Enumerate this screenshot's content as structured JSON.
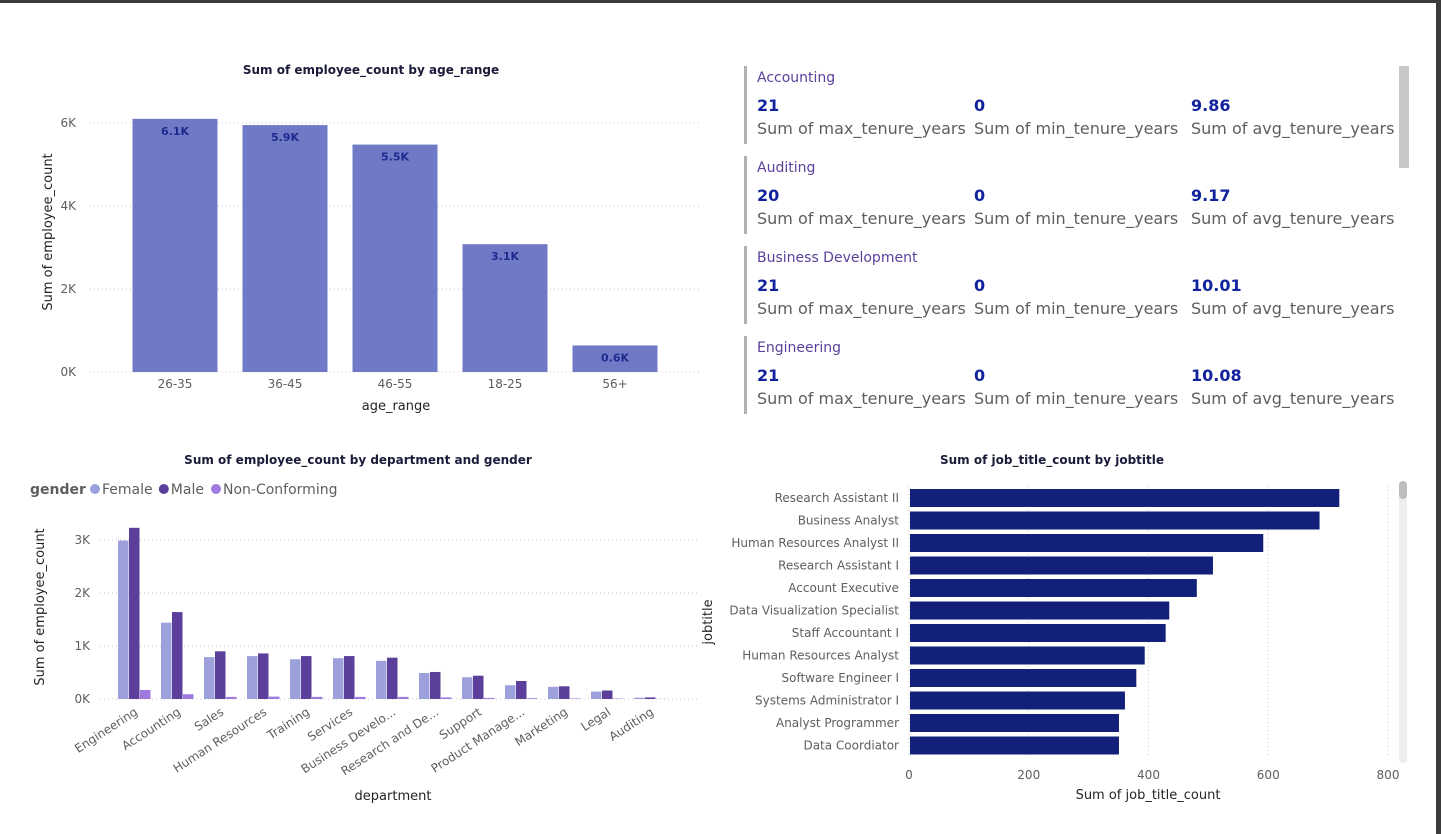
{
  "chart_data": [
    {
      "type": "bar",
      "title": "Sum of employee_count by age_range",
      "xlabel": "age_range",
      "ylabel": "Sum of employee_count",
      "categories": [
        "26-35",
        "36-45",
        "46-55",
        "18-25",
        "56+"
      ],
      "values": [
        6100,
        5950,
        5480,
        3080,
        640
      ],
      "data_labels": [
        "6.1K",
        "5.9K",
        "5.5K",
        "3.1K",
        "0.6K"
      ],
      "yticks": [
        "0K",
        "2K",
        "4K",
        "6K"
      ],
      "ylim": [
        0,
        6000
      ],
      "grid": true,
      "color": "#6f79c6"
    },
    {
      "type": "bar",
      "title": "Sum of employee_count by department and gender",
      "xlabel": "department",
      "ylabel": "Sum of employee_count",
      "legend_title": "gender",
      "legend_placement": "top-left",
      "categories": [
        "Engineering",
        "Accounting",
        "Sales",
        "Human Resources",
        "Training",
        "Services",
        "Business Develo...",
        "Research and De...",
        "Support",
        "Product Manage...",
        "Marketing",
        "Legal",
        "Auditing"
      ],
      "series": [
        {
          "name": "Female",
          "color": "#9ca1dc",
          "values": [
            2990,
            1440,
            790,
            810,
            750,
            770,
            720,
            490,
            410,
            260,
            230,
            140,
            25
          ]
        },
        {
          "name": "Male",
          "color": "#5b3f9a",
          "values": [
            3230,
            1640,
            900,
            860,
            810,
            810,
            780,
            510,
            440,
            340,
            240,
            160,
            30
          ]
        },
        {
          "name": "Non-Conforming",
          "color": "#9f79de",
          "values": [
            170,
            90,
            40,
            45,
            40,
            40,
            40,
            30,
            20,
            15,
            10,
            8,
            2
          ]
        }
      ],
      "yticks": [
        "0K",
        "1K",
        "2K",
        "3K"
      ],
      "ylim": [
        0,
        3300
      ],
      "grid": true
    },
    {
      "type": "bar",
      "orientation": "horizontal",
      "title": "Sum of job_title_count by jobtitle",
      "xlabel": "Sum of job_title_count",
      "ylabel": "jobtitle",
      "categories": [
        "Research Assistant II",
        "Business Analyst",
        "Human Resources Analyst II",
        "Research Assistant I",
        "Account Executive",
        "Data Visualization Specialist",
        "Staff Accountant I",
        "Human Resources Analyst",
        "Software Engineer I",
        "Systems Administrator I",
        "Analyst Programmer",
        "Data Coordiator"
      ],
      "values": [
        717,
        684,
        590,
        506,
        479,
        433,
        427,
        392,
        378,
        359,
        349,
        349
      ],
      "xticks": [
        "0",
        "200",
        "400",
        "600",
        "800"
      ],
      "xlim": [
        0,
        800
      ],
      "grid": true,
      "color": "#12207a"
    }
  ],
  "kpi": {
    "labels": {
      "max": "Sum of max_tenure_years",
      "min": "Sum of min_tenure_years",
      "avg": "Sum of avg_tenure_years"
    },
    "groups": [
      {
        "name": "Accounting",
        "max": "21",
        "min": "0",
        "avg": "9.86"
      },
      {
        "name": "Auditing",
        "max": "20",
        "min": "0",
        "avg": "9.17"
      },
      {
        "name": "Business Development",
        "max": "21",
        "min": "0",
        "avg": "10.01"
      },
      {
        "name": "Engineering",
        "max": "21",
        "min": "0",
        "avg": "10.08"
      }
    ]
  }
}
